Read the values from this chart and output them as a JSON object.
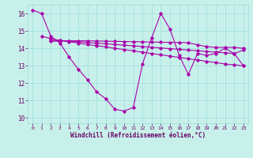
{
  "line1_x": [
    0,
    1,
    2,
    3,
    4,
    5,
    6,
    7,
    8,
    9,
    10,
    11,
    12,
    13,
    14,
    15,
    16,
    17,
    18,
    19,
    20,
    21,
    22,
    23
  ],
  "line1_y": [
    16.2,
    16.0,
    14.7,
    14.3,
    13.5,
    12.8,
    12.2,
    11.5,
    11.1,
    10.5,
    10.4,
    10.6,
    13.1,
    14.6,
    16.0,
    15.1,
    13.6,
    12.5,
    13.7,
    13.6,
    13.7,
    14.0,
    13.7,
    13.0
  ],
  "line2_x": [
    1,
    2,
    3,
    4,
    5,
    6,
    7,
    8,
    9,
    10,
    11,
    12,
    13,
    14,
    15,
    16,
    17,
    18,
    19,
    20,
    21,
    22,
    23
  ],
  "line2_y": [
    14.7,
    14.55,
    14.45,
    14.38,
    14.3,
    14.22,
    14.15,
    14.08,
    14.0,
    13.93,
    13.85,
    13.78,
    13.7,
    13.63,
    13.55,
    13.48,
    13.4,
    13.33,
    13.25,
    13.18,
    13.1,
    13.05,
    13.0
  ],
  "line3_x": [
    2,
    3,
    4,
    5,
    6,
    7,
    8,
    9,
    10,
    11,
    12,
    13,
    14,
    15,
    16,
    17,
    18,
    19,
    20,
    21,
    22,
    23
  ],
  "line3_y": [
    14.45,
    14.45,
    14.42,
    14.38,
    14.34,
    14.3,
    14.26,
    14.22,
    14.18,
    14.14,
    14.1,
    14.06,
    14.02,
    13.98,
    13.94,
    13.9,
    13.86,
    13.82,
    13.78,
    13.74,
    13.7,
    13.9
  ],
  "line4_x": [
    2,
    3,
    4,
    5,
    6,
    7,
    8,
    9,
    10,
    11,
    12,
    13,
    14,
    15,
    16,
    17,
    18,
    19,
    20,
    21,
    22,
    23
  ],
  "line4_y": [
    14.4,
    14.42,
    14.43,
    14.43,
    14.43,
    14.42,
    14.41,
    14.4,
    14.39,
    14.38,
    14.37,
    14.36,
    14.35,
    14.34,
    14.33,
    14.32,
    14.2,
    14.1,
    14.05,
    14.05,
    14.05,
    14.0
  ],
  "bg_color": "#c8f0ea",
  "line_color": "#aa00aa",
  "grid_color": "#99dddd",
  "xlabel": "Windchill (Refroidissement éolien,°C)",
  "xlabel_color": "#660066",
  "tick_color": "#660066",
  "xlim": [
    -0.5,
    23.5
  ],
  "ylim": [
    9.7,
    16.5
  ],
  "yticks": [
    10,
    11,
    12,
    13,
    14,
    15,
    16
  ],
  "xticks": [
    0,
    1,
    2,
    3,
    4,
    5,
    6,
    7,
    8,
    9,
    10,
    11,
    12,
    13,
    14,
    15,
    16,
    17,
    18,
    19,
    20,
    21,
    22,
    23
  ]
}
